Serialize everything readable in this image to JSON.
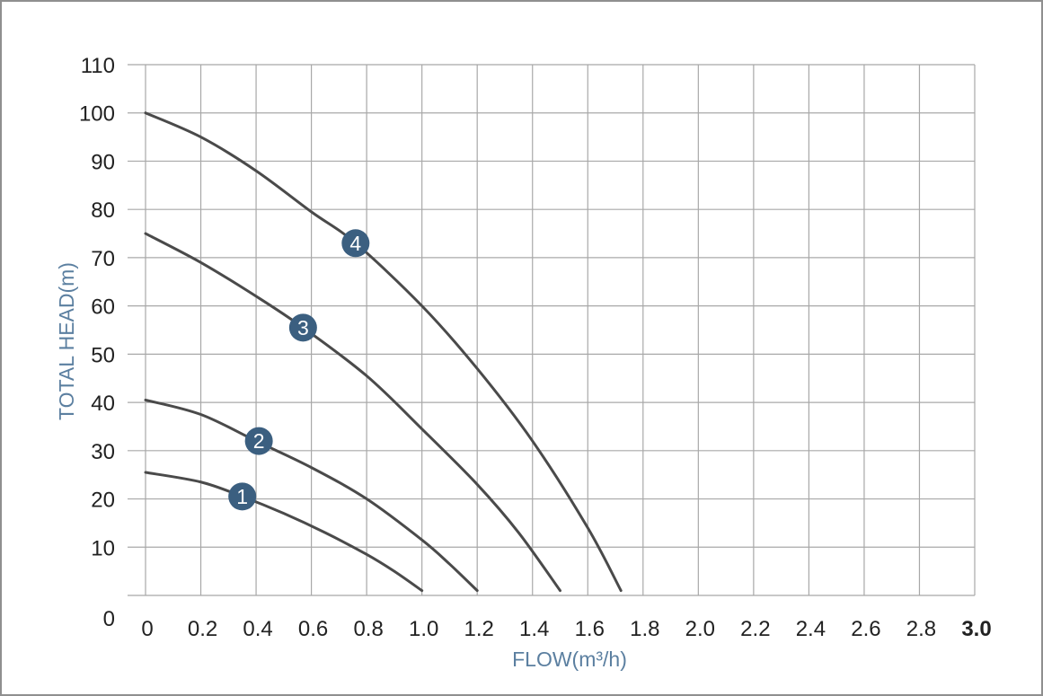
{
  "chart_data": {
    "type": "line",
    "title": "",
    "xlabel": "FLOW(m³/h)",
    "ylabel": "TOTAL HEAD(m)",
    "xlim": [
      0,
      3.0
    ],
    "ylim": [
      0,
      110
    ],
    "x_ticks": [
      "0",
      "0.2",
      "0.4",
      "0.6",
      "0.8",
      "1.0",
      "1.2",
      "1.4",
      "1.6",
      "1.8",
      "2.0",
      "2.2",
      "2.4",
      "2.6",
      "2.8",
      "3.0"
    ],
    "y_ticks": [
      "0",
      "10",
      "20",
      "30",
      "40",
      "50",
      "60",
      "70",
      "80",
      "90",
      "100",
      "110"
    ],
    "grid": true,
    "line_color": "#4a4a4a",
    "marker_color": "#3b5f80",
    "axis_label_color": "#5b7fa0",
    "series": [
      {
        "name": "1",
        "x": [
          0,
          0.2,
          0.35,
          0.5,
          0.65,
          0.8,
          0.9,
          1.0
        ],
        "y": [
          25.5,
          23.5,
          20.5,
          17,
          13,
          8.5,
          5,
          1
        ],
        "marker": {
          "x": 0.35,
          "y": 20.5
        }
      },
      {
        "name": "2",
        "x": [
          0,
          0.2,
          0.4,
          0.6,
          0.8,
          1.0,
          1.1,
          1.2
        ],
        "y": [
          40.5,
          37.5,
          32,
          26.5,
          20,
          11.5,
          6.5,
          1
        ],
        "marker": {
          "x": 0.41,
          "y": 32
        }
      },
      {
        "name": "3",
        "x": [
          0,
          0.2,
          0.4,
          0.57,
          0.8,
          1.0,
          1.2,
          1.35,
          1.5
        ],
        "y": [
          75,
          69,
          62,
          55.5,
          45.5,
          34.5,
          23,
          13,
          1
        ],
        "marker": {
          "x": 0.57,
          "y": 55.5
        }
      },
      {
        "name": "4",
        "x": [
          0,
          0.2,
          0.4,
          0.6,
          0.76,
          1.0,
          1.2,
          1.4,
          1.6,
          1.72
        ],
        "y": [
          100,
          95,
          88,
          79.5,
          73,
          60,
          47,
          32,
          14,
          1
        ],
        "marker": {
          "x": 0.76,
          "y": 73
        }
      }
    ]
  }
}
